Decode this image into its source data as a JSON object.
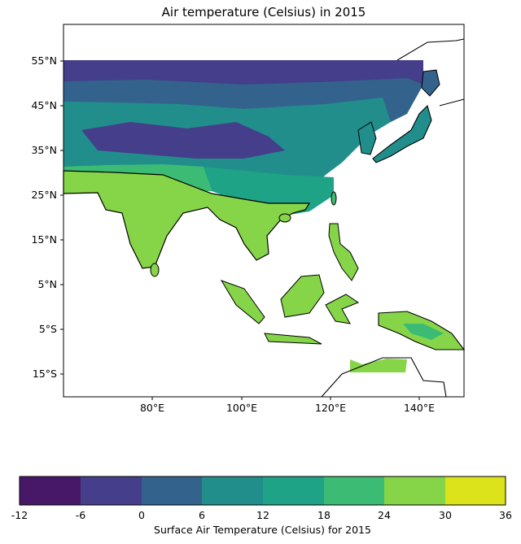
{
  "title": "Air temperature (Celsius) in 2015",
  "lat_labels": [
    "55°N",
    "45°N",
    "35°N",
    "25°N",
    "15°N",
    "5°N",
    "5°S",
    "15°S"
  ],
  "lon_labels": [
    "80°E",
    "100°E",
    "120°E",
    "140°E"
  ],
  "colorbar": {
    "label": "Surface Air Temperature (Celsius) for 2015",
    "ticks": [
      "-12",
      "-6",
      "0",
      "6",
      "12",
      "18",
      "24",
      "30",
      "36"
    ],
    "colors": [
      "#471867",
      "#453e8b",
      "#33638d",
      "#218e8c",
      "#1ea386",
      "#3cbb75",
      "#86d549",
      "#dce31a"
    ]
  },
  "map": {
    "extent_lon": [
      60,
      150
    ],
    "extent_lat": [
      -20,
      63
    ],
    "data_lat_max": 55
  }
}
